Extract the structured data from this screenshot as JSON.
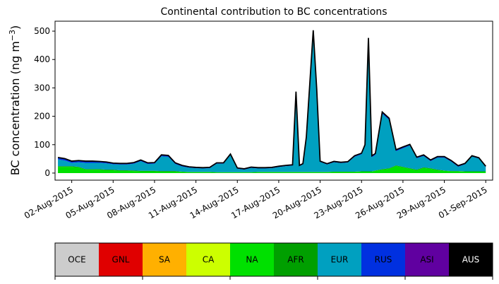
{
  "chart_data": {
    "type": "area",
    "title": "Continental contribution to BC concentrations",
    "xlabel": "",
    "ylabel": "BC concentration (ng m",
    "ylabel_unit_superscript": "−3",
    "ylabel_suffix": ")",
    "ylim": [
      -25,
      535
    ],
    "yticks": [
      0,
      100,
      200,
      300,
      400,
      500
    ],
    "ytick_labels": [
      "0",
      "100",
      "200",
      "300",
      "400",
      "500"
    ],
    "xlim": [
      "2015-07-31T19:00",
      "2015-09-01T12:00"
    ],
    "xticks": [
      "2015-08-02",
      "2015-08-05",
      "2015-08-08",
      "2015-08-11",
      "2015-08-14",
      "2015-08-17",
      "2015-08-20",
      "2015-08-23",
      "2015-08-26",
      "2015-08-29",
      "2015-09-01"
    ],
    "xtick_labels": [
      "02-Aug-2015",
      "05-Aug-2015",
      "08-Aug-2015",
      "11-Aug-2015",
      "14-Aug-2015",
      "17-Aug-2015",
      "20-Aug-2015",
      "23-Aug-2015",
      "26-Aug-2015",
      "29-Aug-2015",
      "01-Sep-2015"
    ],
    "grid": false,
    "legend_placement": "bottom colorbar",
    "x": [
      "2015-08-01T00:00",
      "2015-08-01T12:00",
      "2015-08-02T00:00",
      "2015-08-02T12:00",
      "2015-08-03T00:00",
      "2015-08-03T12:00",
      "2015-08-04T00:00",
      "2015-08-04T12:00",
      "2015-08-05T00:00",
      "2015-08-05T12:00",
      "2015-08-06T00:00",
      "2015-08-06T12:00",
      "2015-08-07T00:00",
      "2015-08-07T12:00",
      "2015-08-08T00:00",
      "2015-08-08T12:00",
      "2015-08-09T00:00",
      "2015-08-09T12:00",
      "2015-08-10T00:00",
      "2015-08-10T12:00",
      "2015-08-11T00:00",
      "2015-08-11T12:00",
      "2015-08-12T00:00",
      "2015-08-12T12:00",
      "2015-08-13T00:00",
      "2015-08-13T12:00",
      "2015-08-14T00:00",
      "2015-08-14T12:00",
      "2015-08-15T00:00",
      "2015-08-15T12:00",
      "2015-08-16T00:00",
      "2015-08-16T12:00",
      "2015-08-17T00:00",
      "2015-08-17T12:00",
      "2015-08-18T00:00",
      "2015-08-18T06:00",
      "2015-08-18T12:00",
      "2015-08-18T18:00",
      "2015-08-19T00:00",
      "2015-08-19T12:00",
      "2015-08-19T18:00",
      "2015-08-20T00:00",
      "2015-08-20T12:00",
      "2015-08-21T00:00",
      "2015-08-21T12:00",
      "2015-08-22T00:00",
      "2015-08-22T12:00",
      "2015-08-23T00:00",
      "2015-08-23T06:00",
      "2015-08-23T12:00",
      "2015-08-23T18:00",
      "2015-08-24T00:00",
      "2015-08-24T12:00",
      "2015-08-25T00:00",
      "2015-08-25T12:00",
      "2015-08-26T00:00",
      "2015-08-26T12:00",
      "2015-08-27T00:00",
      "2015-08-27T12:00",
      "2015-08-28T00:00",
      "2015-08-28T12:00",
      "2015-08-29T00:00",
      "2015-08-29T12:00",
      "2015-08-30T00:00",
      "2015-08-30T12:00",
      "2015-08-31T00:00",
      "2015-08-31T12:00",
      "2015-09-01T00:00"
    ],
    "series": [
      {
        "name": "NA",
        "color": "#00e000",
        "values": [
          22,
          22,
          22,
          20,
          12,
          12,
          12,
          10,
          10,
          8,
          8,
          7,
          6,
          6,
          6,
          5,
          5,
          5,
          4,
          3,
          3,
          3,
          3,
          2,
          2,
          2,
          2,
          2,
          2,
          3,
          3,
          3,
          3,
          3,
          3,
          3,
          3,
          3,
          3,
          3,
          3,
          3,
          3,
          4,
          4,
          4,
          4,
          5,
          5,
          5,
          5,
          8,
          12,
          15,
          25,
          20,
          15,
          10,
          18,
          15,
          10,
          8,
          6,
          6,
          5,
          5,
          5,
          5
        ]
      },
      {
        "name": "AFR",
        "color": "#009f00",
        "values": [
          2,
          2,
          2,
          2,
          2,
          2,
          2,
          2,
          2,
          2,
          2,
          2,
          2,
          2,
          2,
          2,
          2,
          2,
          1,
          1,
          1,
          1,
          1,
          1,
          1,
          1,
          1,
          1,
          1,
          1,
          1,
          1,
          1,
          1,
          1,
          1,
          1,
          1,
          1,
          1,
          1,
          1,
          1,
          1,
          1,
          1,
          1,
          1,
          1,
          1,
          1,
          1,
          2,
          2,
          2,
          2,
          2,
          2,
          2,
          2,
          2,
          1,
          1,
          1,
          1,
          1,
          1,
          1
        ]
      },
      {
        "name": "EUR",
        "color": "#00a0c0",
        "values": [
          24,
          20,
          12,
          16,
          22,
          22,
          22,
          22,
          19,
          20,
          20,
          24,
          34,
          24,
          25,
          52,
          50,
          25,
          18,
          15,
          13,
          12,
          13,
          30,
          30,
          60,
          12,
          9,
          15,
          12,
          12,
          13,
          17,
          20,
          22,
          280,
          20,
          26,
          120,
          495,
          290,
          35,
          26,
          33,
          30,
          32,
          52,
          60,
          90,
          465,
          50,
          55,
          195,
          170,
          50,
          65,
          80,
          40,
          40,
          25,
          42,
          45,
          33,
          15,
          25,
          52,
          45,
          15
        ]
      },
      {
        "name": "RUS",
        "color": "#0030e0",
        "values": [
          6,
          6,
          5,
          5,
          5,
          5,
          4,
          4,
          3,
          3,
          3,
          3,
          3,
          3,
          3,
          4,
          4,
          3,
          3,
          2,
          2,
          2,
          2,
          2,
          2,
          3,
          2,
          2,
          2,
          2,
          2,
          2,
          2,
          2,
          2,
          2,
          2,
          2,
          2,
          3,
          3,
          2,
          2,
          2,
          2,
          2,
          3,
          3,
          3,
          4,
          4,
          4,
          5,
          5,
          4,
          4,
          3,
          3,
          3,
          3,
          3,
          3,
          3,
          3,
          2,
          2,
          2,
          2
        ]
      },
      {
        "name": "ASI",
        "color": "#6000a0",
        "values": [
          1,
          1,
          1,
          1,
          1,
          1,
          1,
          1,
          1,
          1,
          1,
          1,
          1,
          1,
          1,
          1,
          1,
          1,
          1,
          1,
          1,
          1,
          1,
          1,
          1,
          1,
          1,
          1,
          1,
          1,
          1,
          1,
          1,
          1,
          1,
          1,
          1,
          1,
          1,
          1,
          1,
          1,
          1,
          1,
          1,
          1,
          1,
          1,
          1,
          1,
          1,
          1,
          1,
          1,
          1,
          1,
          1,
          1,
          1,
          1,
          1,
          1,
          1,
          1,
          1,
          1,
          1,
          1
        ]
      }
    ],
    "total": [
      55,
      51,
      42,
      44,
      42,
      42,
      41,
      39,
      35,
      34,
      34,
      37,
      46,
      36,
      37,
      64,
      62,
      36,
      27,
      22,
      20,
      19,
      20,
      36,
      36,
      67,
      18,
      15,
      21,
      19,
      19,
      20,
      24,
      27,
      29,
      287,
      27,
      33,
      127,
      503,
      298,
      42,
      33,
      41,
      38,
      40,
      61,
      70,
      100,
      476,
      61,
      69,
      215,
      193,
      82,
      92,
      101,
      56,
      64,
      46,
      58,
      58,
      44,
      26,
      34,
      61,
      54,
      24
    ]
  },
  "legend": {
    "labels": [
      "OCE",
      "GNL",
      "SA",
      "CA",
      "NA",
      "AFR",
      "EUR",
      "RUS",
      "ASI",
      "AUS"
    ],
    "colors": [
      "#cccccc",
      "#e00000",
      "#ffb000",
      "#ccff00",
      "#00e000",
      "#009f00",
      "#00a0c0",
      "#0030e0",
      "#6000a0",
      "#000000"
    ],
    "text_colors": [
      "#000000",
      "#000000",
      "#000000",
      "#000000",
      "#000000",
      "#000000",
      "#000000",
      "#000000",
      "#000000",
      "#ffffff"
    ]
  }
}
